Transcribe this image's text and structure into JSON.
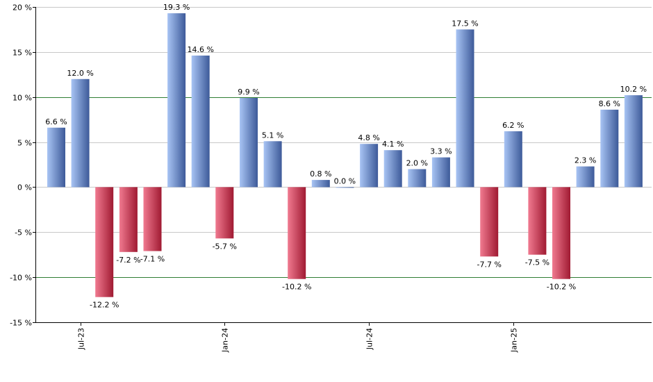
{
  "chart_data": {
    "type": "bar",
    "title": "",
    "xlabel": "",
    "ylabel": "",
    "ylim": [
      -15,
      20
    ],
    "yticks": [
      -15,
      -10,
      -5,
      0,
      5,
      10,
      15,
      20
    ],
    "ytick_labels": [
      "-15 %",
      "-10 %",
      "-5 %",
      "0 %",
      "5 %",
      "10 %",
      "15 %",
      "20 %"
    ],
    "reference_lines": [
      10,
      -10
    ],
    "grid": true,
    "legend": "none",
    "categories": [
      "2023-06",
      "2023-07",
      "2023-08",
      "2023-09",
      "2023-10",
      "2023-11",
      "2023-12",
      "2024-01",
      "2024-02",
      "2024-03",
      "2024-04",
      "2024-05",
      "2024-06",
      "2024-07",
      "2024-08",
      "2024-09",
      "2024-10",
      "2024-11",
      "2024-12",
      "2025-01",
      "2025-02",
      "2025-03",
      "2025-04",
      "2025-05",
      "2025-06"
    ],
    "values": [
      6.6,
      12.0,
      -12.2,
      -7.2,
      -7.1,
      19.3,
      14.6,
      -5.7,
      9.9,
      5.1,
      -10.2,
      0.8,
      0.0,
      4.8,
      4.1,
      2.0,
      3.3,
      17.5,
      -7.7,
      6.2,
      -7.5,
      -10.2,
      2.3,
      8.6,
      10.2
    ],
    "value_labels": [
      "6.6 %",
      "12.0 %",
      "-12.2 %",
      "-7.2 %",
      "-7.1 %",
      "19.3 %",
      "14.6 %",
      "-5.7 %",
      "9.9 %",
      "5.1 %",
      "-10.2 %",
      "0.8 %",
      "0.0 %",
      "4.8 %",
      "4.1 %",
      "2.0 %",
      "3.3 %",
      "17.5 %",
      "-7.7 %",
      "6.2 %",
      "-7.5 %",
      "-10.2 %",
      "2.3 %",
      "8.6 %",
      "10.2 %"
    ],
    "xticks": [
      {
        "label": "Jul-23",
        "category": "2023-07"
      },
      {
        "label": "Jan-24",
        "category": "2024-01"
      },
      {
        "label": "Jul-24",
        "category": "2024-07"
      },
      {
        "label": "Jan-25",
        "category": "2025-01"
      }
    ],
    "colors": {
      "positive_light": "#a8c4f4",
      "positive_dark": "#3d5a99",
      "negative_light": "#f07a90",
      "negative_dark": "#a01a32",
      "grid": "#c8c8c8",
      "reference": "#2e7d32",
      "axis": "#000000"
    }
  }
}
